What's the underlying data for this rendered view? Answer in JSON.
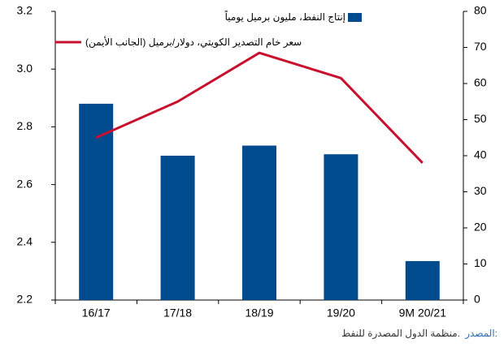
{
  "chart_data": {
    "type": "bar_line",
    "categories": [
      "16/17",
      "17/18",
      "18/19",
      "19/20",
      "9M 20/21"
    ],
    "series": [
      {
        "name": "إنتاج النفط، مليون برميل يومياً",
        "type": "bar",
        "color": "#004b8d",
        "values": [
          2.88,
          2.7,
          2.735,
          2.705,
          2.335
        ]
      },
      {
        "name": "سعر خام التصدير الكويتي، دولار/برميل (الجانب الأيمن)",
        "type": "line",
        "color": "#c8102e",
        "axis": "y2",
        "values": [
          45,
          55,
          68.5,
          61.5,
          38
        ]
      }
    ],
    "ylim": [
      2.2,
      3.2
    ],
    "yticks": [
      2.2,
      2.4,
      2.6,
      2.8,
      {
        "value": 3,
        "label": "3.0"
      },
      3.2
    ],
    "y2lim": [
      0,
      80
    ],
    "y2ticks": [
      0,
      10,
      20,
      30,
      40,
      50,
      60,
      70,
      80
    ],
    "legend": "top-left",
    "source_label": "المصدر:",
    "source_text": "منظمة الدول المصدرة للنفط."
  }
}
